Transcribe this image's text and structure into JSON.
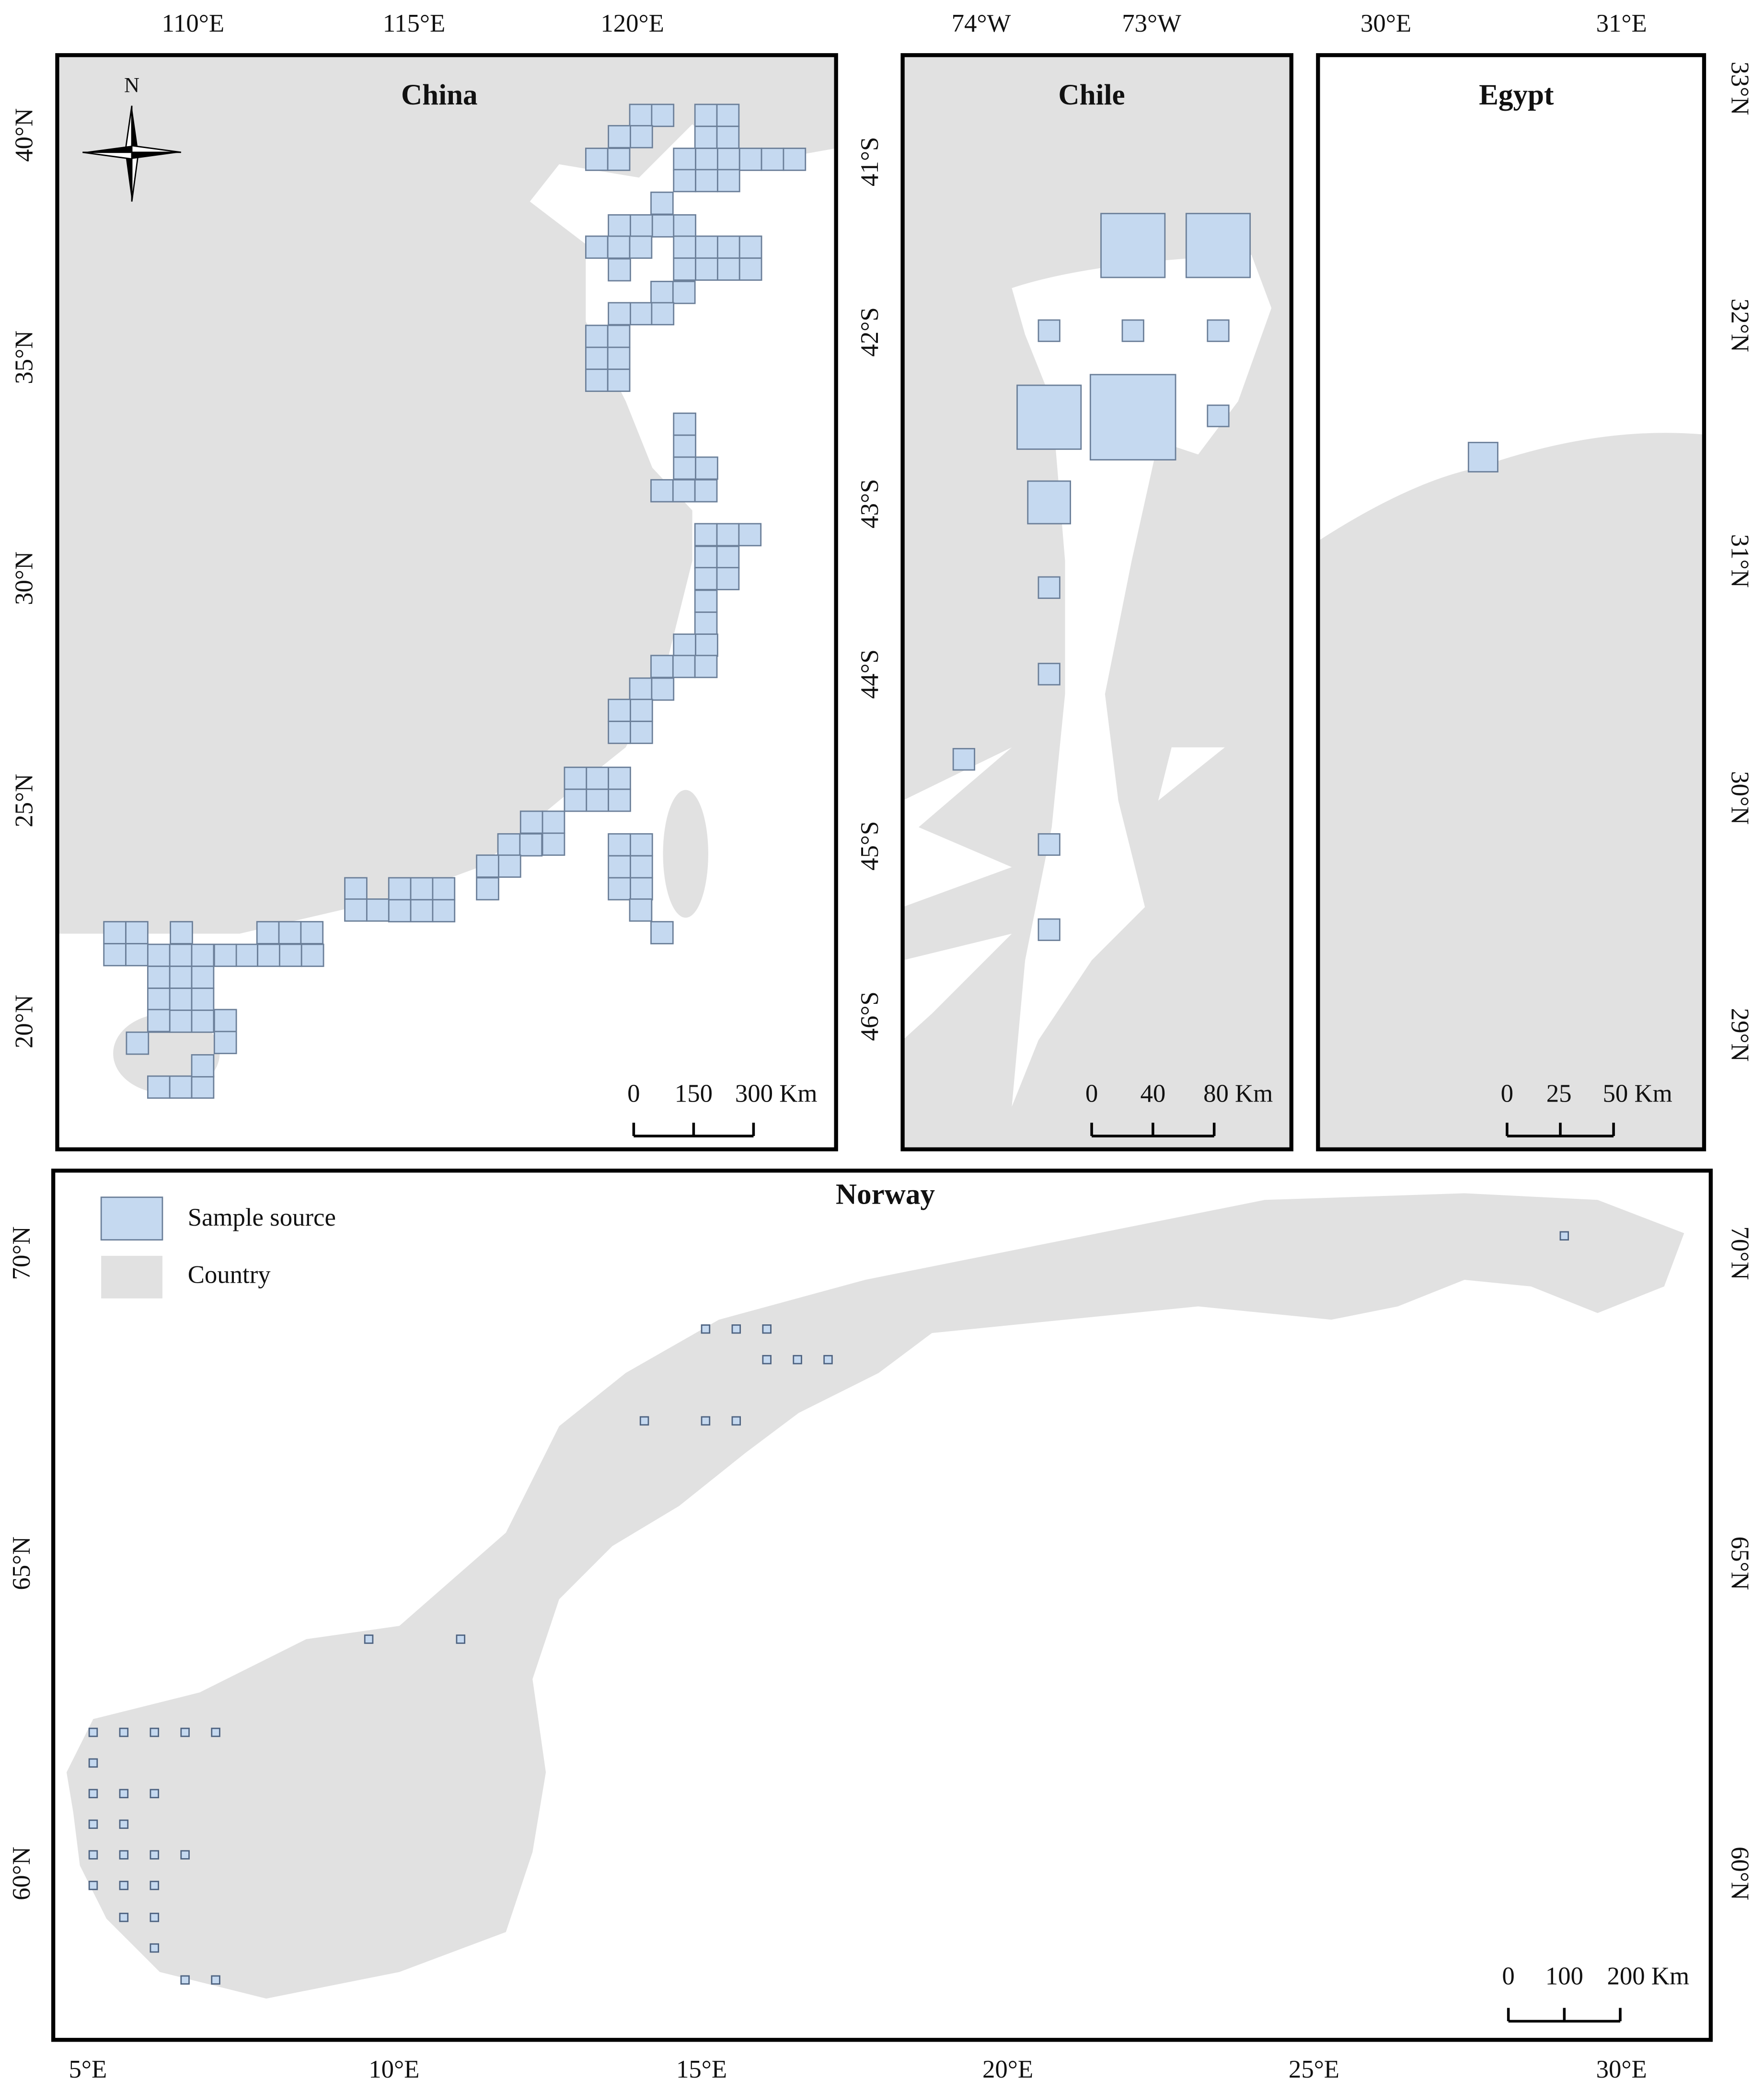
{
  "north_label": "N",
  "panels": [
    {
      "title": "China",
      "x_ticks": [
        "110°E",
        "115°E",
        "120°E"
      ],
      "y_ticks": [
        "40°N",
        "35°N",
        "30°N",
        "25°N",
        "20°N"
      ],
      "scale_labels": [
        "0",
        "150",
        "300 Km"
      ]
    },
    {
      "title": "Chile",
      "x_ticks": [
        "74°W",
        "73°W"
      ],
      "y_ticks": [
        "41°S",
        "42°S",
        "43°S",
        "44°S",
        "45°S",
        "46°S"
      ],
      "scale_labels": [
        "0",
        "40",
        "80 Km"
      ]
    },
    {
      "title": "Egypt",
      "x_ticks": [
        "30°E",
        "31°E"
      ],
      "y_ticks": [
        "33°N",
        "32°N",
        "31°N",
        "30°N",
        "29°N"
      ],
      "scale_labels": [
        "0",
        "25",
        "50 Km"
      ]
    },
    {
      "title": "Norway",
      "x_ticks": [
        "5°E",
        "10°E",
        "15°E",
        "20°E",
        "25°E",
        "30°E"
      ],
      "y_ticks": [
        "70°N",
        "65°N",
        "60°N"
      ],
      "scale_labels": [
        "0",
        "100",
        "200 Km"
      ]
    }
  ],
  "legend": [
    "Sample source",
    "Country"
  ]
}
